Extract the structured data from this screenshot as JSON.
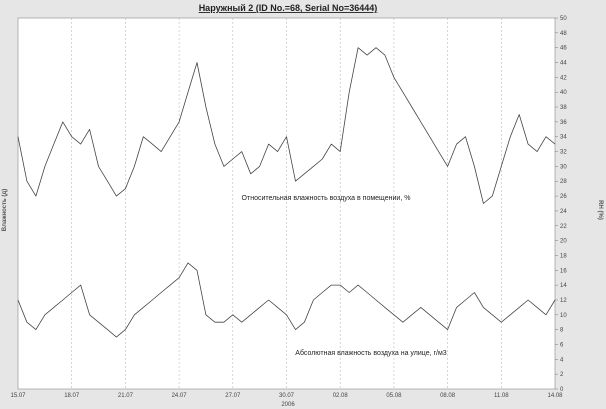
{
  "chart_data": {
    "type": "line",
    "title": "Наружный 2 (ID No.=68, Serial No=36444)",
    "xlabel": "2006",
    "ylabel_left": "Влажность (д)",
    "ylabel_right": "RH (%)",
    "x_tick_labels": [
      "15.07",
      "18.07",
      "21.07",
      "24.07",
      "27.07",
      "30.07",
      "02.08",
      "05.08",
      "08.08",
      "11.08",
      "14.08"
    ],
    "y_ticks": [
      0,
      2,
      4,
      6,
      8,
      10,
      12,
      14,
      16,
      18,
      20,
      22,
      24,
      26,
      28,
      30,
      32,
      34,
      36,
      38,
      40,
      42,
      44,
      46,
      48,
      50
    ],
    "ylim": [
      0,
      50
    ],
    "grid": "vertical-dashed",
    "series": [
      {
        "name": "Относительная влажность воздуха в помещении, %",
        "color": "#444444",
        "x": [
          0,
          0.5,
          1,
          1.5,
          2,
          2.5,
          3,
          3.5,
          4,
          4.5,
          5,
          5.5,
          6,
          6.5,
          7,
          7.5,
          8,
          8.5,
          9,
          9.5,
          10,
          10.5,
          11,
          11.5,
          12,
          12.5,
          13,
          13.5,
          14,
          14.5,
          15,
          15.5,
          16,
          16.5,
          17,
          17.5,
          18,
          18.5,
          19,
          19.5,
          20,
          20.5,
          21,
          21.5,
          22,
          22.5,
          23,
          23.5,
          24,
          24.5,
          25,
          25.5,
          26,
          26.5,
          27,
          27.5,
          28,
          28.5,
          29,
          29.5,
          30
        ],
        "values": [
          34,
          28,
          26,
          30,
          33,
          36,
          34,
          33,
          35,
          30,
          28,
          26,
          27,
          30,
          34,
          33,
          32,
          34,
          36,
          40,
          44,
          38,
          33,
          30,
          31,
          32,
          29,
          30,
          33,
          32,
          34,
          28,
          29,
          30,
          31,
          33,
          32,
          40,
          46,
          45,
          46,
          45,
          42,
          40,
          38,
          36,
          34,
          32,
          30,
          33,
          34,
          30,
          25,
          26,
          30,
          34,
          37,
          33,
          32,
          34,
          33
        ],
        "annotation": "Относительная влажность воздуха в помещении, %"
      },
      {
        "name": "Абсолютная влажность воздуха на улице, г/м3",
        "color": "#444444",
        "x": [
          0,
          0.5,
          1,
          1.5,
          2,
          2.5,
          3,
          3.5,
          4,
          4.5,
          5,
          5.5,
          6,
          6.5,
          7,
          7.5,
          8,
          8.5,
          9,
          9.5,
          10,
          10.5,
          11,
          11.5,
          12,
          12.5,
          13,
          13.5,
          14,
          14.5,
          15,
          15.5,
          16,
          16.5,
          17,
          17.5,
          18,
          18.5,
          19,
          19.5,
          20,
          20.5,
          21,
          21.5,
          22,
          22.5,
          23,
          23.5,
          24,
          24.5,
          25,
          25.5,
          26,
          26.5,
          27,
          27.5,
          28,
          28.5,
          29,
          29.5,
          30
        ],
        "values": [
          12,
          9,
          8,
          10,
          11,
          12,
          13,
          14,
          10,
          9,
          8,
          7,
          8,
          10,
          11,
          12,
          13,
          14,
          15,
          17,
          16,
          10,
          9,
          9,
          10,
          9,
          10,
          11,
          12,
          11,
          10,
          8,
          9,
          12,
          13,
          14,
          14,
          13,
          14,
          13,
          12,
          11,
          10,
          9,
          10,
          11,
          10,
          9,
          8,
          11,
          12,
          13,
          11,
          10,
          9,
          10,
          11,
          12,
          11,
          10,
          12
        ],
        "annotation": "Абсолютная влажность воздуха на улице, г/м3"
      }
    ]
  }
}
